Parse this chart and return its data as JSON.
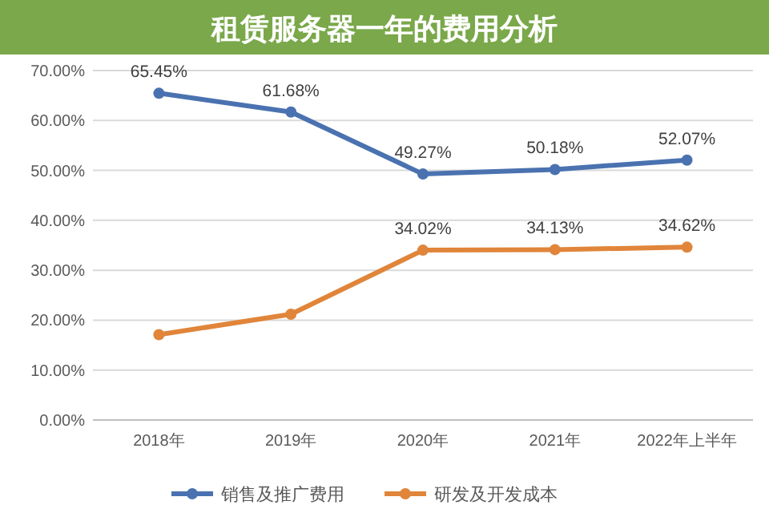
{
  "chart_data": {
    "type": "line",
    "title": "租赁服务器一年的费用分析",
    "categories": [
      "2018年",
      "2019年",
      "2020年",
      "2021年",
      "2022年上半年"
    ],
    "series": [
      {
        "name": "销售及推广费用",
        "color": "#4a72b0",
        "values": [
          65.45,
          61.68,
          49.27,
          50.18,
          52.07
        ],
        "value_labels": [
          "65.45%",
          "61.68%",
          "49.27%",
          "50.18%",
          "52.07%"
        ]
      },
      {
        "name": "研发及开发成本",
        "color": "#e0853a",
        "values": [
          17.1,
          21.2,
          34.02,
          34.13,
          34.62
        ],
        "value_labels": [
          null,
          null,
          "34.02%",
          "34.13%",
          "34.62%"
        ]
      }
    ],
    "ylim": [
      0,
      70
    ],
    "yticks": [
      {
        "value": 0,
        "label": "0.00%"
      },
      {
        "value": 10,
        "label": "10.00%"
      },
      {
        "value": 20,
        "label": "20.00%"
      },
      {
        "value": 30,
        "label": "30.00%"
      },
      {
        "value": 40,
        "label": "40.00%"
      },
      {
        "value": 50,
        "label": "50.00%"
      },
      {
        "value": 60,
        "label": "60.00%"
      },
      {
        "value": 70,
        "label": "70.00%"
      }
    ],
    "grid": "y",
    "legend": "bottom",
    "marker": "circle"
  }
}
